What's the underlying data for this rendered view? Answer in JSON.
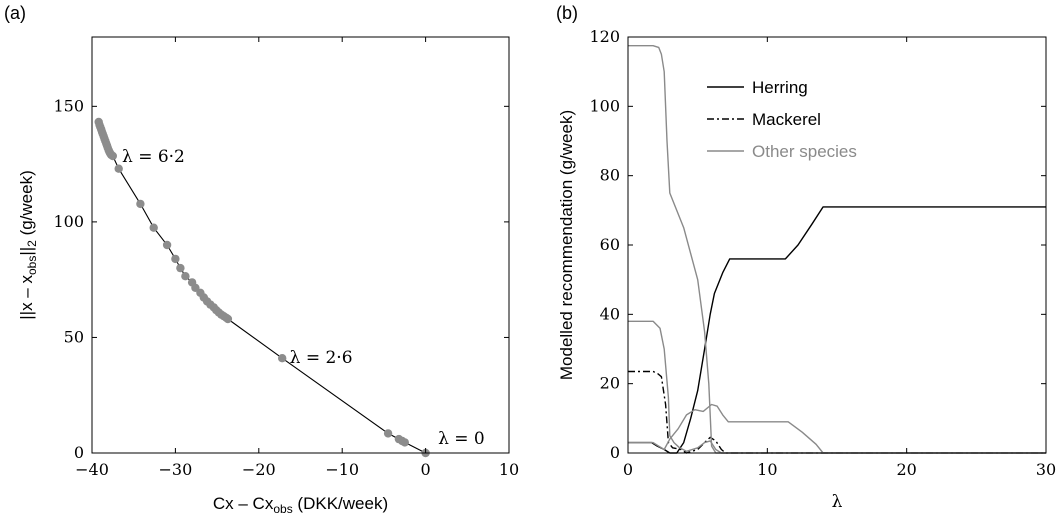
{
  "panels": {
    "a": {
      "label": "(a)"
    },
    "b": {
      "label": "(b)"
    }
  },
  "chart_data": [
    {
      "type": "scatter",
      "title": "",
      "xlabel": "Cx – Cx_obs (DKK/week)",
      "xlabel_main": "Cx – Cx",
      "xlabel_sub": "obs",
      "xlabel_unit": " (DKK/week)",
      "ylabel": "||x – x_obs||_2 (g/week)",
      "ylabel_pre": "||x – x",
      "ylabel_sub": "obs",
      "ylabel_post": "||",
      "ylabel_sub2": "2",
      "ylabel_unit": " (g/week)",
      "xlim": [
        -40,
        10
      ],
      "ylim": [
        0,
        180
      ],
      "xticks": [
        -40,
        -30,
        -20,
        -10,
        0,
        10
      ],
      "xtick_labels": [
        "−40",
        "−30",
        "−20",
        "−10",
        "0",
        "10"
      ],
      "yticks": [
        0,
        50,
        100,
        150
      ],
      "ytick_labels": [
        "0",
        "50",
        "100",
        "150"
      ],
      "points": [
        [
          -39.2,
          143.2
        ],
        [
          -39.1,
          142.0
        ],
        [
          -39.0,
          141.0
        ],
        [
          -38.9,
          140.0
        ],
        [
          -38.8,
          139.0
        ],
        [
          -38.7,
          138.0
        ],
        [
          -38.6,
          137.0
        ],
        [
          -38.5,
          136.0
        ],
        [
          -38.4,
          135.0
        ],
        [
          -38.3,
          134.0
        ],
        [
          -38.2,
          133.0
        ],
        [
          -38.1,
          132.0
        ],
        [
          -38.0,
          131.0
        ],
        [
          -37.9,
          130.2
        ],
        [
          -37.8,
          129.6
        ],
        [
          -37.7,
          129.0
        ],
        [
          -37.5,
          128.5
        ],
        [
          -36.8,
          123.0
        ],
        [
          -34.2,
          107.8
        ],
        [
          -32.6,
          97.5
        ],
        [
          -31.0,
          90.0
        ],
        [
          -30.0,
          84.0
        ],
        [
          -29.4,
          80.0
        ],
        [
          -28.8,
          76.5
        ],
        [
          -28.0,
          73.8
        ],
        [
          -27.6,
          71.5
        ],
        [
          -27.0,
          69.3
        ],
        [
          -26.6,
          67.3
        ],
        [
          -26.2,
          65.6
        ],
        [
          -25.8,
          64.2
        ],
        [
          -25.4,
          63.0
        ],
        [
          -25.1,
          61.8
        ],
        [
          -24.8,
          60.8
        ],
        [
          -24.5,
          59.9
        ],
        [
          -24.2,
          59.2
        ],
        [
          -23.9,
          58.5
        ],
        [
          -23.7,
          58.0
        ],
        [
          -17.2,
          41.0
        ],
        [
          -4.5,
          8.5
        ],
        [
          -3.2,
          6.0
        ],
        [
          -2.8,
          5.2
        ],
        [
          -2.5,
          4.6
        ],
        [
          0.0,
          0.0
        ]
      ],
      "annotations": [
        {
          "text": "λ = 6·2",
          "x": -36.4,
          "y": 126
        },
        {
          "text": "λ = 2·6",
          "x": -16.3,
          "y": 39
        },
        {
          "text": "λ = 0",
          "x": 1.5,
          "y": 4
        }
      ]
    },
    {
      "type": "line",
      "title": "",
      "xlabel": "λ",
      "ylabel": "Modelled recommendation (g/week)",
      "xlim": [
        0,
        30
      ],
      "ylim": [
        0,
        120
      ],
      "xticks": [
        0,
        10,
        20,
        30
      ],
      "xtick_labels": [
        "0",
        "10",
        "20",
        "30"
      ],
      "yticks": [
        0,
        20,
        40,
        60,
        80,
        100,
        120
      ],
      "ytick_labels": [
        "0",
        "20",
        "40",
        "60",
        "80",
        "100",
        "120"
      ],
      "legend_position": "top-center",
      "series": [
        {
          "name": "Herring",
          "color": "#000000",
          "dash": "solid",
          "points": [
            [
              0,
              3
            ],
            [
              1.7,
              3
            ],
            [
              2.1,
              2
            ],
            [
              2.6,
              1
            ],
            [
              3.0,
              0
            ],
            [
              3.5,
              0
            ],
            [
              4.0,
              3
            ],
            [
              4.5,
              10
            ],
            [
              5.0,
              18
            ],
            [
              5.5,
              30
            ],
            [
              5.9,
              40
            ],
            [
              6.2,
              46
            ],
            [
              6.8,
              52
            ],
            [
              7.3,
              56
            ],
            [
              11.3,
              56
            ],
            [
              12.2,
              60
            ],
            [
              13.2,
              66
            ],
            [
              14.0,
              71
            ],
            [
              30,
              71
            ]
          ]
        },
        {
          "name": "Mackerel",
          "color": "#000000",
          "dash": "dashdot",
          "points": [
            [
              0,
              23.5
            ],
            [
              1.8,
              23.5
            ],
            [
              2.1,
              23
            ],
            [
              2.4,
              22
            ],
            [
              2.7,
              14
            ],
            [
              2.9,
              3
            ],
            [
              3.2,
              1.5
            ],
            [
              3.8,
              1
            ],
            [
              4.2,
              0
            ],
            [
              5.0,
              1
            ],
            [
              5.5,
              3
            ],
            [
              5.9,
              4.5
            ],
            [
              6.3,
              3.5
            ],
            [
              6.7,
              1
            ],
            [
              7.0,
              0
            ],
            [
              30,
              0
            ]
          ]
        },
        {
          "name": "Other species",
          "color": "#8a8a8a",
          "dash": "solid",
          "points": [
            [
              0,
              117.5
            ],
            [
              1.8,
              117.5
            ],
            [
              2.2,
              117
            ],
            [
              2.4,
              115
            ],
            [
              2.6,
              110
            ],
            [
              2.8,
              90
            ],
            [
              3.0,
              75
            ],
            [
              4.0,
              65
            ],
            [
              5.0,
              50
            ],
            [
              5.5,
              35
            ],
            [
              5.8,
              20
            ],
            [
              6.0,
              2
            ],
            [
              6.3,
              0
            ],
            [
              30,
              0
            ]
          ]
        },
        {
          "name": "",
          "color": "#8a8a8a",
          "dash": "solid",
          "points": [
            [
              0,
              38
            ],
            [
              1.8,
              38
            ],
            [
              2.3,
              36
            ],
            [
              2.6,
              30
            ],
            [
              2.9,
              16
            ],
            [
              3.0,
              5
            ],
            [
              3.3,
              3
            ],
            [
              3.7,
              1.5
            ],
            [
              4.2,
              0.5
            ],
            [
              5.0,
              1.5
            ],
            [
              5.5,
              3
            ],
            [
              5.9,
              3.5
            ],
            [
              6.3,
              1
            ],
            [
              6.7,
              0
            ],
            [
              30,
              0
            ]
          ]
        },
        {
          "name": "",
          "color": "#8a8a8a",
          "dash": "solid",
          "points": [
            [
              0,
              3
            ],
            [
              1.8,
              3
            ],
            [
              2.2,
              2
            ],
            [
              2.6,
              1
            ],
            [
              3.0,
              4
            ],
            [
              3.6,
              7
            ],
            [
              4.2,
              11
            ],
            [
              4.8,
              12.5
            ],
            [
              5.4,
              12
            ],
            [
              6.0,
              14
            ],
            [
              6.4,
              13.5
            ],
            [
              6.8,
              11
            ],
            [
              7.2,
              9
            ],
            [
              11.5,
              9
            ],
            [
              12.5,
              6
            ],
            [
              13.5,
              2.5
            ],
            [
              14.0,
              0
            ],
            [
              30,
              0
            ]
          ]
        }
      ]
    }
  ]
}
